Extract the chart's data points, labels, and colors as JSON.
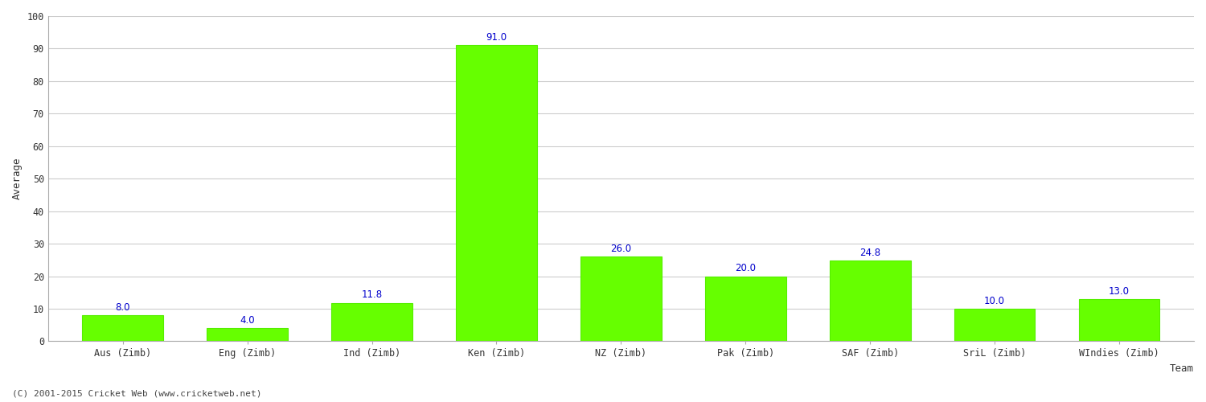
{
  "categories": [
    "Aus (Zimb)",
    "Eng (Zimb)",
    "Ind (Zimb)",
    "Ken (Zimb)",
    "NZ (Zimb)",
    "Pak (Zimb)",
    "SAF (Zimb)",
    "SriL (Zimb)",
    "WIndies (Zimb)"
  ],
  "values": [
    8.0,
    4.0,
    11.8,
    91.0,
    26.0,
    20.0,
    24.8,
    10.0,
    13.0
  ],
  "bar_color": "#66ff00",
  "bar_edge_color": "#55ee00",
  "xlabel": "Team",
  "ylabel": "Average",
  "ylim": [
    0,
    100
  ],
  "yticks": [
    0,
    10,
    20,
    30,
    40,
    50,
    60,
    70,
    80,
    90,
    100
  ],
  "label_color": "#0000cc",
  "label_fontsize": 8.5,
  "axis_label_fontsize": 9,
  "tick_fontsize": 8.5,
  "grid_color": "#cccccc",
  "background_color": "#ffffff",
  "footer_text": "(C) 2001-2015 Cricket Web (www.cricketweb.net)",
  "footer_fontsize": 8
}
